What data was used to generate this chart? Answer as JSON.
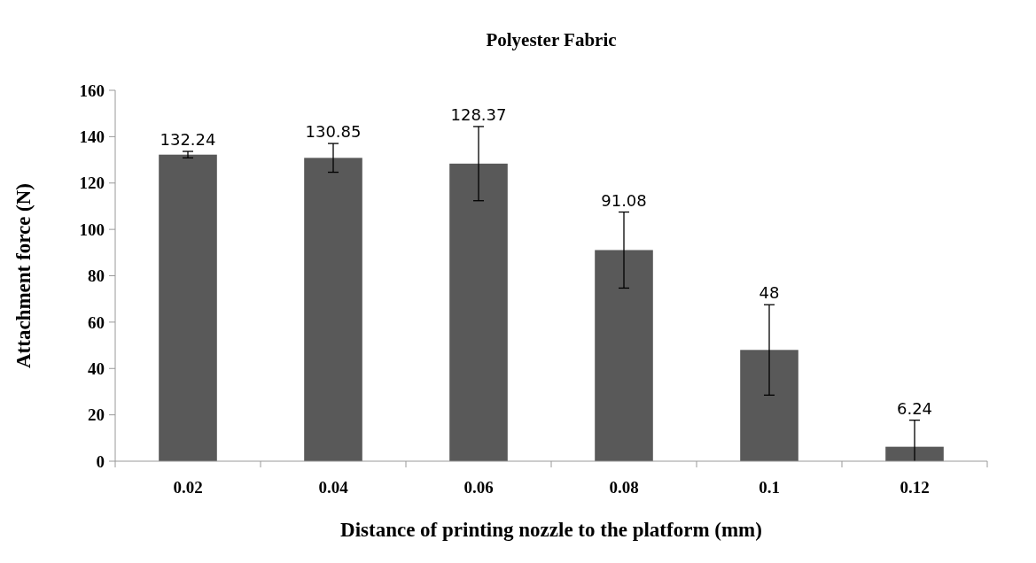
{
  "chart_data": {
    "type": "bar",
    "title": "Polyester Fabric",
    "xlabel": "Distance of printing nozzle to the platform (mm)",
    "ylabel": "Attachment force (N)",
    "categories": [
      "0.02",
      "0.04",
      "0.06",
      "0.08",
      "0.1",
      "0.12"
    ],
    "values": [
      132.24,
      130.85,
      128.37,
      91.08,
      48,
      6.24
    ],
    "errors": [
      1.4,
      6.2,
      16,
      16.4,
      19.5,
      [
        0,
        17.7
      ]
    ],
    "color": "#595959",
    "data_labels": true,
    "ylim": [
      0,
      160
    ],
    "yticks": [
      0,
      20,
      40,
      60,
      80,
      100,
      120,
      140,
      160
    ],
    "grid": false
  }
}
